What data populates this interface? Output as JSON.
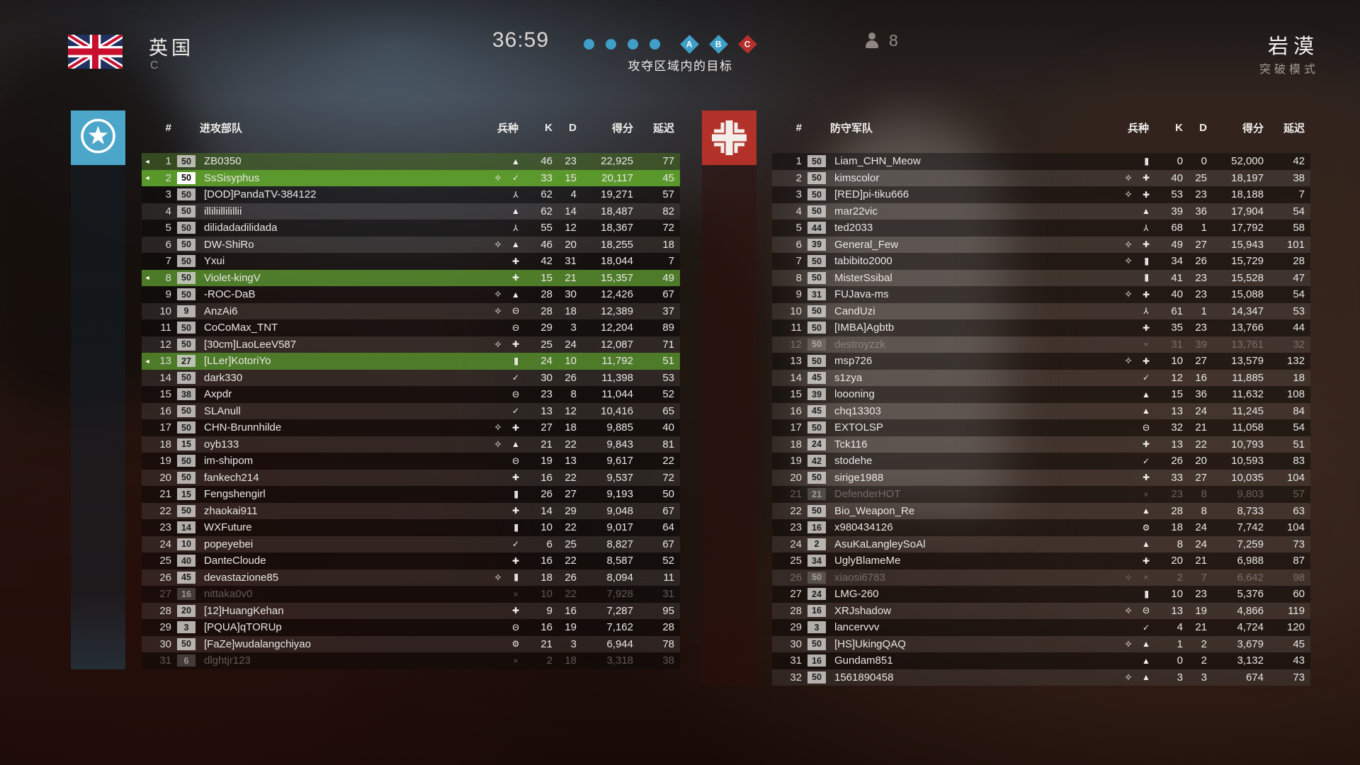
{
  "header": {
    "team_name": "英国",
    "team_letter": "C",
    "timer": "36:59",
    "objective_hint": "攻夺区域内的目标",
    "player_count": "8",
    "map_name": "岩漠",
    "mode_name": "突破模式",
    "objectives": [
      {
        "type": "dot",
        "color": "#3f9fc9"
      },
      {
        "type": "dot",
        "color": "#3f9fc9"
      },
      {
        "type": "dot",
        "color": "#3f9fc9"
      },
      {
        "type": "dot",
        "color": "#3f9fc9"
      },
      {
        "type": "diamond",
        "label": "A",
        "color": "#3f9fc9"
      },
      {
        "type": "diamond",
        "label": "B",
        "color": "#3f9fc9"
      },
      {
        "type": "diamond",
        "label": "C",
        "color": "#b5302d"
      }
    ]
  },
  "colors": {
    "attacker_team": "#4ba6c9",
    "defender_team": "#b23129",
    "squad_row_bright": "#5e9e2c",
    "squad_row_green": "#548a2c",
    "objective_blue": "#3f9fc9",
    "objective_red": "#b5302d"
  },
  "columns": {
    "rank": "#",
    "class": "兵种",
    "kills": "K",
    "deaths": "D",
    "score": "得分",
    "ping": "延迟"
  },
  "icons": {
    "speaker": "◄",
    "leader": "✧",
    "assault": "▲",
    "medic": "✚",
    "support": "|||",
    "scout": "✓",
    "pilot": "⅄",
    "tanker": "Θ",
    "gear": "⚙",
    "dead": "×"
  },
  "attackers": {
    "title": "进攻部队",
    "rows": [
      {
        "rank": 1,
        "level": "50",
        "name": "ZB0350",
        "class": "assault",
        "kills": 46,
        "deaths": 23,
        "score": "22,925",
        "ping": 77,
        "speaker": true,
        "highlight": "olive"
      },
      {
        "rank": 2,
        "level": "50",
        "name": "SsSisyphus",
        "class": "scout",
        "leader": true,
        "kills": 33,
        "deaths": 15,
        "score": "20,117",
        "ping": 45,
        "speaker": true,
        "highlight": "bright"
      },
      {
        "rank": 3,
        "level": "50",
        "name": "[DOD]PandaTV-384122",
        "class": "pilot",
        "kills": 62,
        "deaths": 4,
        "score": "19,271",
        "ping": 57
      },
      {
        "rank": 4,
        "level": "50",
        "name": "illiliillilillii",
        "class": "assault",
        "kills": 62,
        "deaths": 14,
        "score": "18,487",
        "ping": 82
      },
      {
        "rank": 5,
        "level": "50",
        "name": "dilidadadilidada",
        "class": "pilot",
        "kills": 55,
        "deaths": 12,
        "score": "18,367",
        "ping": 72
      },
      {
        "rank": 6,
        "level": "50",
        "name": "DW-ShiRo",
        "class": "assault",
        "leader": true,
        "kills": 46,
        "deaths": 20,
        "score": "18,255",
        "ping": 18
      },
      {
        "rank": 7,
        "level": "50",
        "name": "Yxui",
        "class": "medic",
        "kills": 42,
        "deaths": 31,
        "score": "18,044",
        "ping": 7
      },
      {
        "rank": 8,
        "level": "50",
        "name": "Violet-kingV",
        "class": "medic",
        "kills": 15,
        "deaths": 21,
        "score": "15,357",
        "ping": 49,
        "speaker": true,
        "highlight": "green"
      },
      {
        "rank": 9,
        "level": "50",
        "name": "-ROC-DaB",
        "class": "assault",
        "leader": true,
        "kills": 28,
        "deaths": 30,
        "score": "12,426",
        "ping": 67
      },
      {
        "rank": 10,
        "level": "9",
        "name": "AnzAi6",
        "class": "tanker",
        "leader": true,
        "kills": 28,
        "deaths": 18,
        "score": "12,389",
        "ping": 37
      },
      {
        "rank": 11,
        "level": "50",
        "name": "CoCoMax_TNT",
        "class": "tanker",
        "kills": 29,
        "deaths": 3,
        "score": "12,204",
        "ping": 89
      },
      {
        "rank": 12,
        "level": "50",
        "name": "[30cm]LaoLeeV587",
        "class": "medic",
        "leader": true,
        "kills": 25,
        "deaths": 24,
        "score": "12,087",
        "ping": 71
      },
      {
        "rank": 13,
        "level": "27",
        "name": "[LLer]KotoriYo",
        "class": "support",
        "kills": 24,
        "deaths": 10,
        "score": "11,792",
        "ping": 51,
        "speaker": true,
        "highlight": "green"
      },
      {
        "rank": 14,
        "level": "50",
        "name": "dark330",
        "class": "scout",
        "kills": 30,
        "deaths": 26,
        "score": "11,398",
        "ping": 53
      },
      {
        "rank": 15,
        "level": "38",
        "name": "Axpdr",
        "class": "tanker",
        "kills": 23,
        "deaths": 8,
        "score": "11,044",
        "ping": 52
      },
      {
        "rank": 16,
        "level": "50",
        "name": "SLAnull",
        "class": "scout",
        "kills": 13,
        "deaths": 12,
        "score": "10,416",
        "ping": 65
      },
      {
        "rank": 17,
        "level": "50",
        "name": "CHN-Brunnhilde",
        "class": "medic",
        "leader": true,
        "kills": 27,
        "deaths": 18,
        "score": "9,885",
        "ping": 40
      },
      {
        "rank": 18,
        "level": "15",
        "name": "oyb133",
        "class": "assault",
        "leader": true,
        "kills": 21,
        "deaths": 22,
        "score": "9,843",
        "ping": 81
      },
      {
        "rank": 19,
        "level": "50",
        "name": "im-shipom",
        "class": "tanker",
        "kills": 19,
        "deaths": 13,
        "score": "9,617",
        "ping": 22
      },
      {
        "rank": 20,
        "level": "50",
        "name": "fankech214",
        "class": "medic",
        "kills": 16,
        "deaths": 22,
        "score": "9,537",
        "ping": 72
      },
      {
        "rank": 21,
        "level": "15",
        "name": "Fengshengirl",
        "class": "support",
        "kills": 26,
        "deaths": 27,
        "score": "9,193",
        "ping": 50
      },
      {
        "rank": 22,
        "level": "50",
        "name": "zhaokai911",
        "class": "medic",
        "kills": 14,
        "deaths": 29,
        "score": "9,048",
        "ping": 67
      },
      {
        "rank": 23,
        "level": "14",
        "name": "WXFuture",
        "class": "support",
        "kills": 10,
        "deaths": 22,
        "score": "9,017",
        "ping": 64
      },
      {
        "rank": 24,
        "level": "10",
        "name": "popeyebei",
        "class": "scout",
        "kills": 6,
        "deaths": 25,
        "score": "8,827",
        "ping": 67
      },
      {
        "rank": 25,
        "level": "40",
        "name": "DanteCloude",
        "class": "medic",
        "kills": 16,
        "deaths": 22,
        "score": "8,587",
        "ping": 52
      },
      {
        "rank": 26,
        "level": "45",
        "name": "devastazione85",
        "class": "support",
        "leader": true,
        "kills": 18,
        "deaths": 26,
        "score": "8,094",
        "ping": 11
      },
      {
        "rank": 27,
        "level": "16",
        "name": "nittaka0v0",
        "class": "dead",
        "kills": 10,
        "deaths": 22,
        "score": "7,928",
        "ping": 31,
        "dimmed": true
      },
      {
        "rank": 28,
        "level": "20",
        "name": "[12]HuangKehan",
        "class": "medic",
        "kills": 9,
        "deaths": 16,
        "score": "7,287",
        "ping": 95
      },
      {
        "rank": 29,
        "level": "3",
        "name": "[PQUA]qTORUp",
        "class": "tanker",
        "kills": 16,
        "deaths": 19,
        "score": "7,162",
        "ping": 28
      },
      {
        "rank": 30,
        "level": "50",
        "name": "[FaZe]wudalangchiyao",
        "class": "gear",
        "kills": 21,
        "deaths": 3,
        "score": "6,944",
        "ping": 78
      },
      {
        "rank": 31,
        "level": "6",
        "name": "dlghtjr123",
        "class": "dead",
        "kills": 2,
        "deaths": 18,
        "score": "3,318",
        "ping": 38,
        "dimmed": true
      }
    ]
  },
  "defenders": {
    "title": "防守军队",
    "rows": [
      {
        "rank": 1,
        "level": "50",
        "name": "Liam_CHN_Meow",
        "class": "support",
        "kills": 0,
        "deaths": 0,
        "score": "52,000",
        "ping": 42
      },
      {
        "rank": 2,
        "level": "50",
        "name": "kimscolor",
        "class": "medic",
        "leader": true,
        "kills": 40,
        "deaths": 25,
        "score": "18,197",
        "ping": 38
      },
      {
        "rank": 3,
        "level": "50",
        "name": "[RED]pi-tiku666",
        "class": "medic",
        "leader": true,
        "kills": 53,
        "deaths": 23,
        "score": "18,188",
        "ping": 7
      },
      {
        "rank": 4,
        "level": "50",
        "name": "mar22vic",
        "class": "assault",
        "kills": 39,
        "deaths": 36,
        "score": "17,904",
        "ping": 54
      },
      {
        "rank": 5,
        "level": "44",
        "name": "ted2033",
        "class": "pilot",
        "kills": 68,
        "deaths": 1,
        "score": "17,792",
        "ping": 58
      },
      {
        "rank": 6,
        "level": "39",
        "name": "General_Few",
        "class": "medic",
        "leader": true,
        "kills": 49,
        "deaths": 27,
        "score": "15,943",
        "ping": 101
      },
      {
        "rank": 7,
        "level": "50",
        "name": "tabibito2000",
        "class": "support",
        "leader": true,
        "kills": 34,
        "deaths": 26,
        "score": "15,729",
        "ping": 28
      },
      {
        "rank": 8,
        "level": "50",
        "name": "MisterSsibal",
        "class": "support",
        "kills": 41,
        "deaths": 23,
        "score": "15,528",
        "ping": 47
      },
      {
        "rank": 9,
        "level": "31",
        "name": "FUJava-ms",
        "class": "medic",
        "leader": true,
        "kills": 40,
        "deaths": 23,
        "score": "15,088",
        "ping": 54
      },
      {
        "rank": 10,
        "level": "50",
        "name": "CandUzi",
        "class": "pilot",
        "kills": 61,
        "deaths": 1,
        "score": "14,347",
        "ping": 53
      },
      {
        "rank": 11,
        "level": "50",
        "name": "[IMBA]Agbtb",
        "class": "medic",
        "kills": 35,
        "deaths": 23,
        "score": "13,766",
        "ping": 44
      },
      {
        "rank": 12,
        "level": "50",
        "name": "destroyzzk",
        "class": "dead",
        "kills": 31,
        "deaths": 39,
        "score": "13,761",
        "ping": 32,
        "dimmed": true
      },
      {
        "rank": 13,
        "level": "50",
        "name": "msp726",
        "class": "medic",
        "leader": true,
        "kills": 10,
        "deaths": 27,
        "score": "13,579",
        "ping": 132
      },
      {
        "rank": 14,
        "level": "45",
        "name": "s1zya",
        "class": "scout",
        "kills": 12,
        "deaths": 16,
        "score": "11,885",
        "ping": 18
      },
      {
        "rank": 15,
        "level": "39",
        "name": "loooning",
        "class": "assault",
        "kills": 15,
        "deaths": 36,
        "score": "11,632",
        "ping": 108
      },
      {
        "rank": 16,
        "level": "45",
        "name": "chq13303",
        "class": "assault",
        "kills": 13,
        "deaths": 24,
        "score": "11,245",
        "ping": 84
      },
      {
        "rank": 17,
        "level": "50",
        "name": "EXTOLSP",
        "class": "tanker",
        "kills": 32,
        "deaths": 21,
        "score": "11,058",
        "ping": 54
      },
      {
        "rank": 18,
        "level": "24",
        "name": "Tck116",
        "class": "medic",
        "kills": 13,
        "deaths": 22,
        "score": "10,793",
        "ping": 51
      },
      {
        "rank": 19,
        "level": "42",
        "name": "stodehe",
        "class": "scout",
        "kills": 26,
        "deaths": 20,
        "score": "10,593",
        "ping": 83
      },
      {
        "rank": 20,
        "level": "50",
        "name": "sirige1988",
        "class": "medic",
        "kills": 33,
        "deaths": 27,
        "score": "10,035",
        "ping": 104
      },
      {
        "rank": 21,
        "level": "21",
        "name": "DefenderHOT",
        "class": "dead",
        "kills": 23,
        "deaths": 8,
        "score": "9,803",
        "ping": 57,
        "dimmed": true
      },
      {
        "rank": 22,
        "level": "50",
        "name": "Bio_Weapon_Re",
        "class": "assault",
        "kills": 28,
        "deaths": 8,
        "score": "8,733",
        "ping": 63
      },
      {
        "rank": 23,
        "level": "16",
        "name": "x980434126",
        "class": "gear",
        "kills": 18,
        "deaths": 24,
        "score": "7,742",
        "ping": 104
      },
      {
        "rank": 24,
        "level": "2",
        "name": "AsuKaLangleySoAl",
        "class": "assault",
        "kills": 8,
        "deaths": 24,
        "score": "7,259",
        "ping": 73
      },
      {
        "rank": 25,
        "level": "34",
        "name": "UglyBlameMe",
        "class": "medic",
        "kills": 20,
        "deaths": 21,
        "score": "6,988",
        "ping": 87
      },
      {
        "rank": 26,
        "level": "50",
        "name": "xiaosi6783",
        "class": "dead",
        "leader": true,
        "kills": 2,
        "deaths": 7,
        "score": "6,642",
        "ping": 98,
        "dimmed": true
      },
      {
        "rank": 27,
        "level": "24",
        "name": "LMG-260",
        "class": "support",
        "kills": 10,
        "deaths": 23,
        "score": "5,376",
        "ping": 60
      },
      {
        "rank": 28,
        "level": "16",
        "name": "XRJshadow",
        "class": "tanker",
        "leader": true,
        "kills": 13,
        "deaths": 19,
        "score": "4,866",
        "ping": 119
      },
      {
        "rank": 29,
        "level": "3",
        "name": "lancervvv",
        "class": "scout",
        "kills": 4,
        "deaths": 21,
        "score": "4,724",
        "ping": 120
      },
      {
        "rank": 30,
        "level": "50",
        "name": "[HS]UkingQAQ",
        "class": "assault",
        "leader": true,
        "kills": 1,
        "deaths": 2,
        "score": "3,679",
        "ping": 45
      },
      {
        "rank": 31,
        "level": "16",
        "name": "Gundam851",
        "class": "assault",
        "kills": 0,
        "deaths": 2,
        "score": "3,132",
        "ping": 43
      },
      {
        "rank": 32,
        "level": "50",
        "name": "1561890458",
        "class": "assault",
        "leader": true,
        "kills": 3,
        "deaths": 3,
        "score": "674",
        "ping": 73
      }
    ]
  }
}
